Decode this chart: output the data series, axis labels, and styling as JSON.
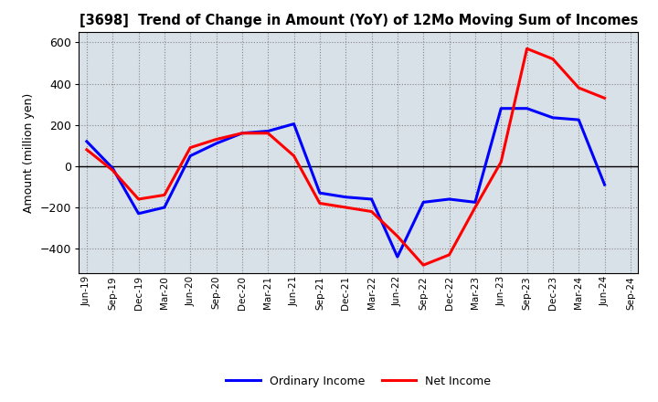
{
  "title": "[3698]  Trend of Change in Amount (YoY) of 12Mo Moving Sum of Incomes",
  "ylabel": "Amount (million yen)",
  "ylim": [
    -520,
    650
  ],
  "yticks": [
    -400,
    -200,
    0,
    200,
    400,
    600
  ],
  "figure_bg_color": "#ffffff",
  "plot_bg_color": "#d8e0e8",
  "ordinary_income_color": "#0000ff",
  "net_income_color": "#ff0000",
  "line_width": 2.2,
  "x_labels": [
    "Jun-19",
    "Sep-19",
    "Dec-19",
    "Mar-20",
    "Jun-20",
    "Sep-20",
    "Dec-20",
    "Mar-21",
    "Jun-21",
    "Sep-21",
    "Dec-21",
    "Mar-22",
    "Jun-22",
    "Sep-22",
    "Dec-22",
    "Mar-23",
    "Jun-23",
    "Sep-23",
    "Dec-23",
    "Mar-24",
    "Jun-24",
    "Sep-24"
  ],
  "ordinary_income": [
    120,
    -10,
    -230,
    -200,
    50,
    110,
    160,
    170,
    205,
    -130,
    -150,
    -160,
    -440,
    -175,
    -160,
    -175,
    280,
    280,
    235,
    225,
    -90,
    null
  ],
  "net_income": [
    80,
    -20,
    -160,
    -140,
    90,
    130,
    160,
    160,
    50,
    -180,
    -200,
    -220,
    -340,
    -480,
    -430,
    -200,
    20,
    570,
    520,
    380,
    330,
    null
  ]
}
